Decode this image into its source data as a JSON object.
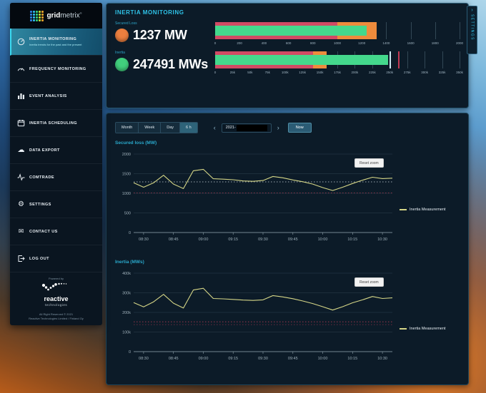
{
  "app": {
    "brand_bold": "grid",
    "brand_light": "metrix",
    "brand_mark": "®",
    "logo_dot_colors": [
      "#2e7de0",
      "#2fb9e8",
      "#34cd7a",
      "#bedc3a",
      "#eda229"
    ]
  },
  "sidebar": {
    "items": [
      {
        "key": "inertia-monitoring",
        "icon": "gauge",
        "label": "INERTIA MONITORING",
        "subtitle": "Inertia trends for the past and the present",
        "active": true
      },
      {
        "key": "frequency-monitoring",
        "icon": "speedometer",
        "label": "FREQUENCY MONITORING",
        "active": false
      },
      {
        "key": "event-analysis",
        "icon": "bar-chart",
        "label": "EVENT ANALYSIS",
        "active": false
      },
      {
        "key": "inertia-scheduling",
        "icon": "calendar",
        "label": "INERTIA SCHEDULING",
        "active": false
      },
      {
        "key": "data-export",
        "icon": "cloud-download",
        "label": "DATA EXPORT",
        "active": false
      },
      {
        "key": "comtrade",
        "icon": "waveform",
        "label": "COMTRADE",
        "active": false
      },
      {
        "key": "settings",
        "icon": "gear",
        "label": "SETTINGS",
        "active": false
      },
      {
        "key": "contact-us",
        "icon": "envelope",
        "label": "CONTACT US",
        "active": false
      },
      {
        "key": "log-out",
        "icon": "log-out",
        "label": "LOG OUT",
        "active": false
      }
    ],
    "footer": {
      "powered_by": "Powered by",
      "logo_name": "reactive",
      "logo_sub": "technologies",
      "rights": "All Right Reserved © 2021",
      "company": "Reactive Technologies Limited / Finland Oy"
    }
  },
  "header": {
    "title": "INERTIA MONITORING",
    "settings_tab": "SETTINGS",
    "settings_chevron": "›",
    "metrics": [
      {
        "label": "Secured Loss",
        "value": "1237 MW",
        "dot_color": "#ec7f3f",
        "gauge": {
          "max": 2000,
          "value": 1237,
          "bar_color": "#44d88c",
          "zones": [
            [
              0,
              1000,
              "#d14a64"
            ],
            [
              1000,
              1320,
              "#ee8b3c"
            ]
          ],
          "markers": [],
          "ticks": [
            [
              0,
              "0"
            ],
            [
              200,
              "200"
            ],
            [
              400,
              "400"
            ],
            [
              600,
              "600"
            ],
            [
              800,
              "800"
            ],
            [
              1000,
              "1000"
            ],
            [
              1200,
              "1200"
            ],
            [
              1400,
              "1400"
            ],
            [
              1600,
              "1600"
            ],
            [
              1800,
              "1800"
            ],
            [
              2000,
              "2000"
            ]
          ]
        }
      },
      {
        "label": "Inertia",
        "value": "247491 MWs",
        "dot_color": "#41cf7d",
        "gauge": {
          "max": 350000,
          "value": 247491,
          "bar_color": "#44d88c",
          "zones": [
            [
              0,
              140000,
              "#d14a64"
            ],
            [
              140000,
              160000,
              "#ee8b3c"
            ]
          ],
          "markers": [
            [
              250000,
              "#cfe9f4"
            ],
            [
              262000,
              "#c23a55"
            ]
          ],
          "ticks": [
            [
              0,
              "0"
            ],
            [
              25000,
              "25k"
            ],
            [
              50000,
              "50k"
            ],
            [
              75000,
              "75k"
            ],
            [
              100000,
              "100k"
            ],
            [
              125000,
              "125k"
            ],
            [
              150000,
              "150k"
            ],
            [
              175000,
              "175k"
            ],
            [
              200000,
              "200k"
            ],
            [
              225000,
              "225k"
            ],
            [
              250000,
              "250k"
            ],
            [
              275000,
              "275k"
            ],
            [
              300000,
              "300k"
            ],
            [
              325000,
              "325k"
            ],
            [
              350000,
              "350k"
            ]
          ]
        }
      }
    ]
  },
  "controls": {
    "range_buttons": [
      "Month",
      "Week",
      "Day",
      "6 h"
    ],
    "active_range": "6 h",
    "prev": "‹",
    "next": "›",
    "date_prefix": "2021-",
    "now": "Now"
  },
  "chart_data": [
    {
      "type": "line",
      "title": "Secured loss (MW)",
      "legend": "Inertia Measurement",
      "reset_zoom_label": "Reset zoom",
      "line_color": "#d5d687",
      "ylim": [
        0,
        2000
      ],
      "y_ticks": [
        [
          0,
          "0"
        ],
        [
          500,
          "500"
        ],
        [
          1000,
          "1000"
        ],
        [
          1500,
          "1500"
        ],
        [
          2000,
          "2000"
        ]
      ],
      "x_ticks": [
        "08:30",
        "08:45",
        "09:00",
        "09:15",
        "09:30",
        "09:45",
        "10:00",
        "10:15",
        "10:30"
      ],
      "thresholds": [
        [
          1290,
          "#c9d6dd"
        ],
        [
          1010,
          "#b13a50"
        ]
      ],
      "points": [
        {
          "time": "08:25",
          "value": 1270
        },
        {
          "time": "08:30",
          "value": 1155
        },
        {
          "time": "08:35",
          "value": 1265
        },
        {
          "time": "08:40",
          "value": 1460
        },
        {
          "time": "08:45",
          "value": 1235
        },
        {
          "time": "08:50",
          "value": 1120
        },
        {
          "time": "08:55",
          "value": 1575
        },
        {
          "time": "09:00",
          "value": 1610
        },
        {
          "time": "09:05",
          "value": 1370
        },
        {
          "time": "09:10",
          "value": 1360
        },
        {
          "time": "09:15",
          "value": 1345
        },
        {
          "time": "09:20",
          "value": 1315
        },
        {
          "time": "09:25",
          "value": 1305
        },
        {
          "time": "09:30",
          "value": 1325
        },
        {
          "time": "09:35",
          "value": 1430
        },
        {
          "time": "09:40",
          "value": 1395
        },
        {
          "time": "09:45",
          "value": 1340
        },
        {
          "time": "09:50",
          "value": 1295
        },
        {
          "time": "09:55",
          "value": 1235
        },
        {
          "time": "10:00",
          "value": 1145
        },
        {
          "time": "10:05",
          "value": 1070
        },
        {
          "time": "10:10",
          "value": 1155
        },
        {
          "time": "10:15",
          "value": 1250
        },
        {
          "time": "10:20",
          "value": 1335
        },
        {
          "time": "10:25",
          "value": 1410
        },
        {
          "time": "10:30",
          "value": 1375
        },
        {
          "time": "10:35",
          "value": 1385
        }
      ]
    },
    {
      "type": "line",
      "title": "Inertia (MWs)",
      "legend": "Inertia Measurement",
      "reset_zoom_label": "Reset zoom",
      "line_color": "#d5d687",
      "ylim": [
        0,
        400000
      ],
      "y_ticks": [
        [
          0,
          "0"
        ],
        [
          100000,
          "100k"
        ],
        [
          200000,
          "200k"
        ],
        [
          300000,
          "300k"
        ],
        [
          400000,
          "400k"
        ]
      ],
      "x_ticks": [
        "08:30",
        "08:45",
        "09:00",
        "09:15",
        "09:30",
        "09:45",
        "10:00",
        "10:15",
        "10:30"
      ],
      "thresholds": [
        [
          152000,
          "#b13a50"
        ],
        [
          138000,
          "#8a3044"
        ]
      ],
      "points": [
        {
          "time": "08:25",
          "value": 250000
        },
        {
          "time": "08:30",
          "value": 228000
        },
        {
          "time": "08:35",
          "value": 254000
        },
        {
          "time": "08:40",
          "value": 292000
        },
        {
          "time": "08:45",
          "value": 247000
        },
        {
          "time": "08:50",
          "value": 222000
        },
        {
          "time": "08:55",
          "value": 314000
        },
        {
          "time": "09:00",
          "value": 323000
        },
        {
          "time": "09:05",
          "value": 271000
        },
        {
          "time": "09:10",
          "value": 269000
        },
        {
          "time": "09:15",
          "value": 266000
        },
        {
          "time": "09:20",
          "value": 263000
        },
        {
          "time": "09:25",
          "value": 261000
        },
        {
          "time": "09:30",
          "value": 264000
        },
        {
          "time": "09:35",
          "value": 286000
        },
        {
          "time": "09:40",
          "value": 279000
        },
        {
          "time": "09:45",
          "value": 270000
        },
        {
          "time": "09:50",
          "value": 258000
        },
        {
          "time": "09:55",
          "value": 245000
        },
        {
          "time": "10:00",
          "value": 229000
        },
        {
          "time": "10:05",
          "value": 212000
        },
        {
          "time": "10:10",
          "value": 229000
        },
        {
          "time": "10:15",
          "value": 249000
        },
        {
          "time": "10:20",
          "value": 264000
        },
        {
          "time": "10:25",
          "value": 281000
        },
        {
          "time": "10:30",
          "value": 271000
        },
        {
          "time": "10:35",
          "value": 274000
        }
      ]
    }
  ]
}
